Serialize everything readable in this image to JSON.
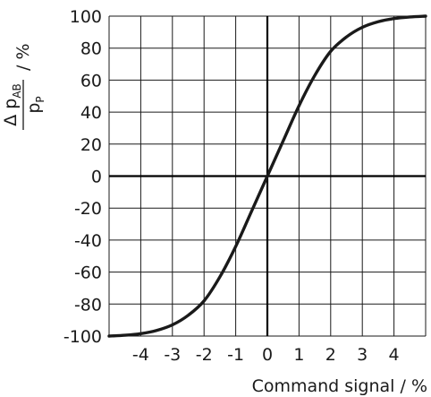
{
  "chart_data": {
    "type": "line",
    "xlabel": "Command signal / %",
    "ylabel": {
      "numerator_symbol": "Δ p",
      "numerator_subscript": "AB",
      "denominator_symbol": "p",
      "denominator_subscript": "P",
      "unit_suffix": "/ %"
    },
    "xlim": [
      -5,
      5
    ],
    "ylim": [
      -100,
      100
    ],
    "x_ticks": [
      -4,
      -3,
      -2,
      -1,
      0,
      1,
      2,
      3,
      4
    ],
    "y_ticks": [
      100,
      80,
      60,
      40,
      20,
      0,
      -20,
      -40,
      -60,
      -80,
      -100
    ],
    "grid": true,
    "series": [
      {
        "color": "#1a1a1a",
        "points": [
          [
            -5,
            -100
          ],
          [
            -4.5,
            -99.5
          ],
          [
            -4,
            -98.5
          ],
          [
            -3.5,
            -96.5
          ],
          [
            -3,
            -93
          ],
          [
            -2.5,
            -87
          ],
          [
            -2,
            -78
          ],
          [
            -1.5,
            -63
          ],
          [
            -1,
            -44
          ],
          [
            -0.5,
            -22
          ],
          [
            0,
            0
          ],
          [
            0.5,
            22
          ],
          [
            1,
            44
          ],
          [
            1.5,
            63
          ],
          [
            2,
            78
          ],
          [
            2.5,
            87
          ],
          [
            3,
            93
          ],
          [
            3.5,
            96.5
          ],
          [
            4,
            98.5
          ],
          [
            4.5,
            99.5
          ],
          [
            5,
            100
          ]
        ]
      }
    ]
  }
}
